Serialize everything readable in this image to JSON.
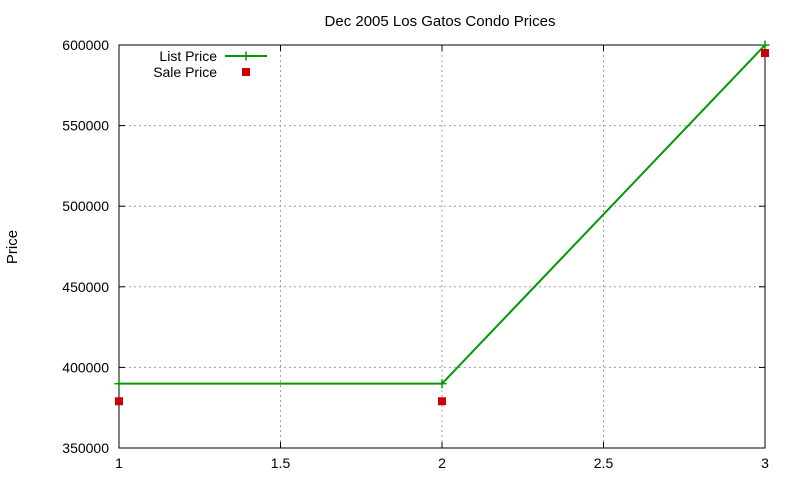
{
  "chart_data": {
    "type": "line",
    "title": "Dec 2005 Los Gatos Condo Prices",
    "xlabel": "",
    "ylabel": "Price",
    "xlim": [
      1,
      3
    ],
    "ylim": [
      350000,
      600000
    ],
    "x_ticks": [
      1,
      1.5,
      2,
      2.5,
      3
    ],
    "x_tick_labels": [
      "1",
      "1.5",
      "2",
      "2.5",
      "3"
    ],
    "y_ticks": [
      350000,
      400000,
      450000,
      500000,
      550000,
      600000
    ],
    "y_tick_labels": [
      "350000",
      "400000",
      "450000",
      "500000",
      "550000",
      "600000"
    ],
    "grid": true,
    "legend_position": "top-left",
    "series": [
      {
        "name": "List Price",
        "style": "linespoints",
        "marker": "plus",
        "color": "#009900",
        "x": [
          1,
          2,
          3
        ],
        "y": [
          389900,
          389900,
          599950
        ]
      },
      {
        "name": "Sale Price",
        "style": "points",
        "marker": "square",
        "color": "#cc0000",
        "x": [
          1,
          2,
          3
        ],
        "y": [
          379000,
          379000,
          595000
        ]
      }
    ]
  }
}
